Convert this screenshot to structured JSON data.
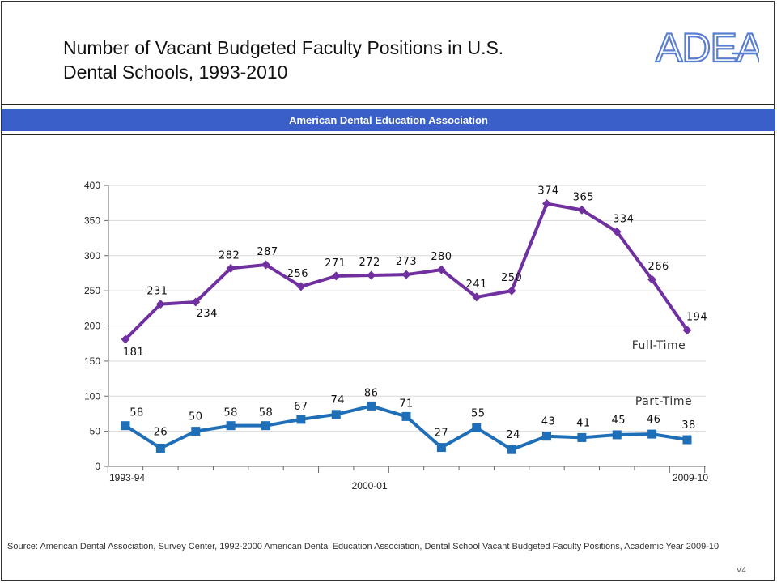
{
  "header": {
    "title_line1": "Number of Vacant Budgeted Faculty Positions in U.S.",
    "title_line2": "Dental Schools, 1993-2010",
    "logo_text": "ADEA",
    "band_text": "American Dental Education Association"
  },
  "footer": {
    "source": "Source: American Dental Association, Survey Center, 1992-2000 American Dental Education Association, Dental School Vacant Budgeted Faculty Positions, Academic Year 2009-10",
    "version": "V4"
  },
  "colors": {
    "band": "#3a5fc8",
    "logo": "#5a7fd0",
    "full_time": "#7030a0",
    "part_time": "#1f6fb8"
  },
  "chart_data": {
    "type": "line",
    "title": "",
    "xlabel": "",
    "ylabel": "",
    "ylim": [
      0,
      400
    ],
    "yticks": [
      0,
      50,
      100,
      150,
      200,
      250,
      300,
      350,
      400
    ],
    "grid": true,
    "x_tick_labels": [
      {
        "label": "1993-94",
        "index": 0
      },
      {
        "label": "2000-01",
        "index": 7
      },
      {
        "label": "2009-10",
        "index": 16
      }
    ],
    "n_points": 17,
    "series": [
      {
        "name": "Full-Time",
        "color": "#7030a0",
        "marker": "diamond",
        "values": [
          181,
          231,
          234,
          282,
          287,
          256,
          271,
          272,
          273,
          280,
          241,
          250,
          374,
          365,
          334,
          266,
          194
        ]
      },
      {
        "name": "Part-Time",
        "color": "#1f6fb8",
        "marker": "square",
        "values": [
          58,
          26,
          50,
          58,
          58,
          67,
          74,
          86,
          71,
          27,
          55,
          24,
          43,
          41,
          45,
          46,
          38
        ]
      }
    ]
  }
}
